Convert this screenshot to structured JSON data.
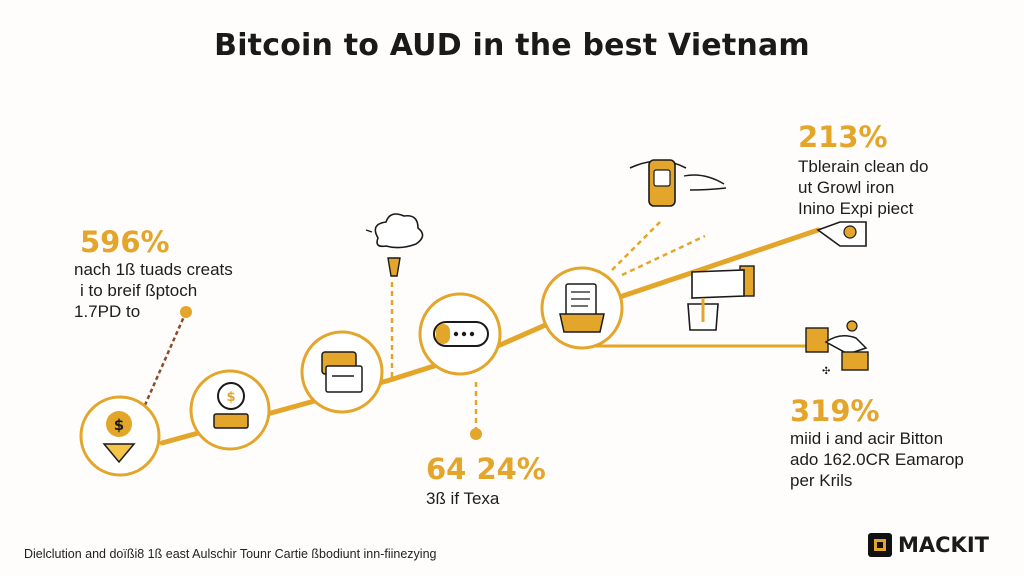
{
  "title": "Bitcoin to AUD in the best Vietnam",
  "stats": {
    "left": {
      "value": "596%",
      "lines": [
        "nach 1ß tuads creats",
        "i to breif ßptoch",
        "1.7PD to"
      ]
    },
    "bottom_mid": {
      "value": "64 24%",
      "lines": [
        "3ß if Texa"
      ]
    },
    "top_right": {
      "value": "213%",
      "lines": [
        "Tblerain clean do",
        "ut Growl iron",
        "Inino Expi piect"
      ]
    },
    "bottom_right": {
      "value": "319%",
      "lines": [
        "miid i and acir Bitton",
        "ado 162.0CR Eamarop",
        "per Krils"
      ]
    }
  },
  "footer": "Dielclution and doïßi8 1ß east Aulschir Tounr Cartie ßbodiunt inn-fiinezying",
  "brand": "MACKIT",
  "colors": {
    "accent": "#e3a52a",
    "accent_light": "#f5c548",
    "ink": "#1a1a1a"
  },
  "icons": [
    "dollar-tag-icon",
    "money-bag-icon",
    "wallet-stack-icon",
    "chat-card-icon",
    "document-folder-icon",
    "lightbulb-icon",
    "phone-card-icon",
    "coffee-cup-icon",
    "handshake-icon",
    "hand-coin-icon"
  ]
}
